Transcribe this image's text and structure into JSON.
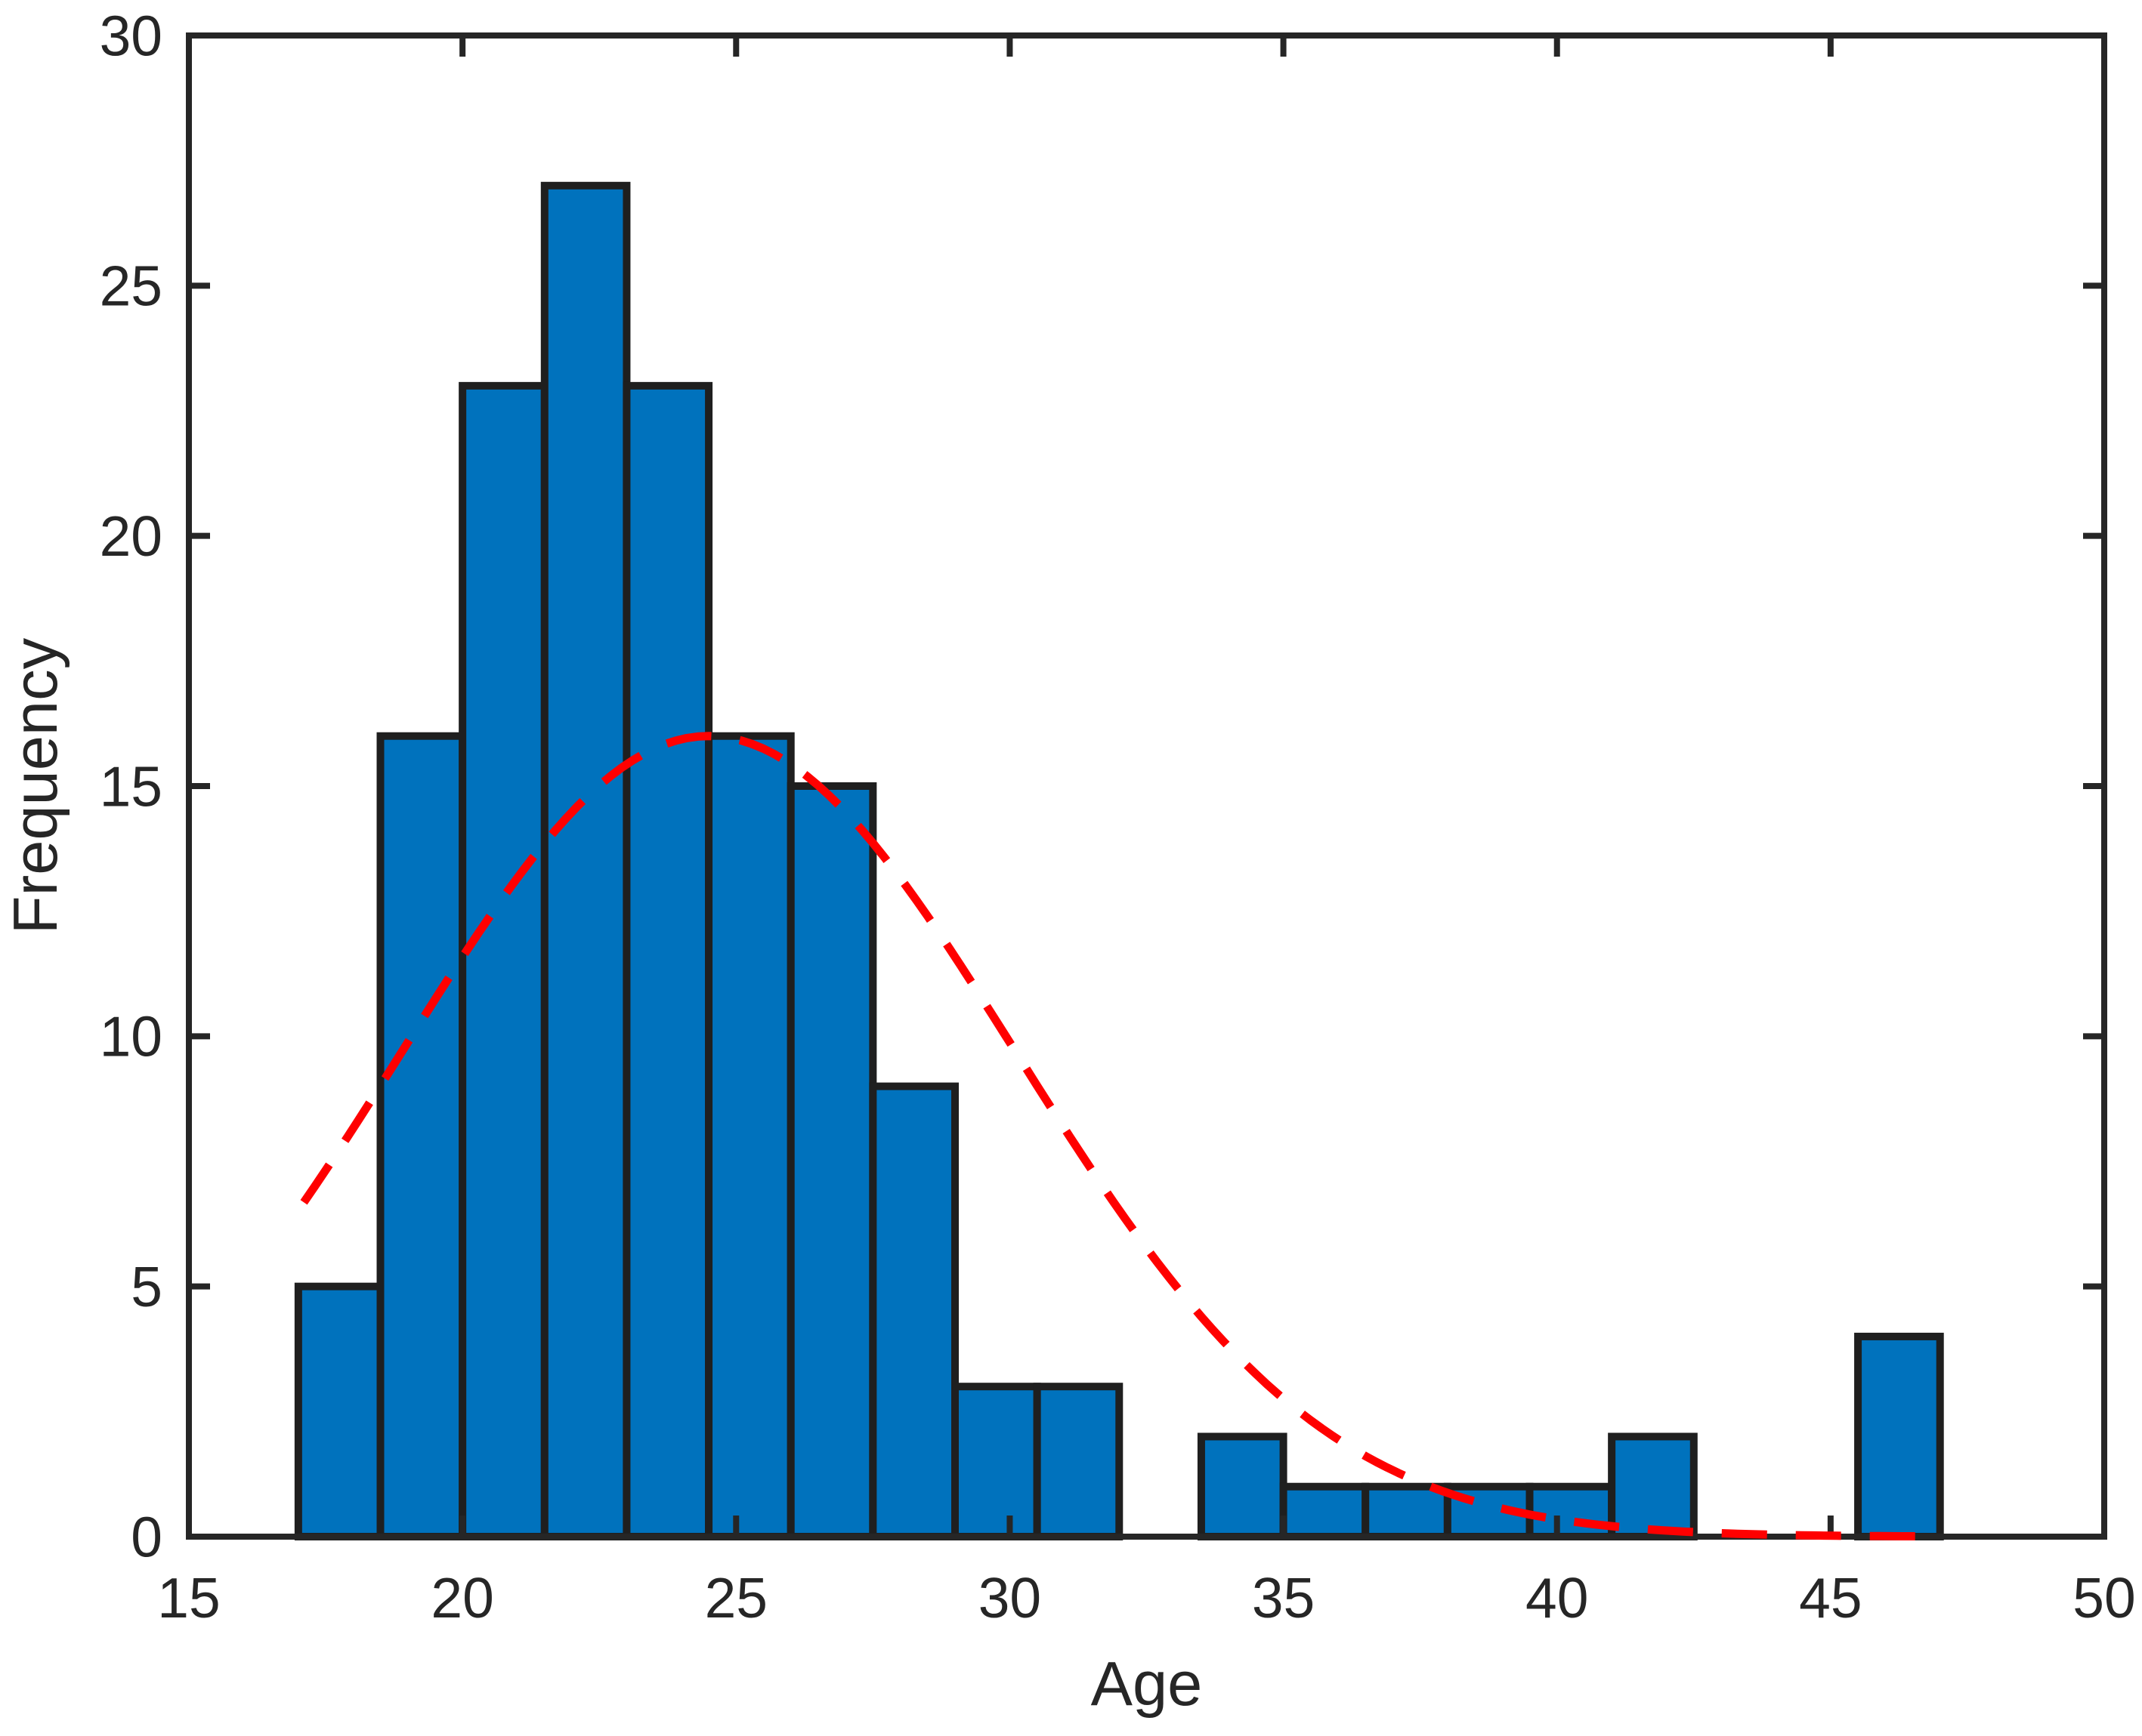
{
  "figure": {
    "background": "#ffffff",
    "axes_color": "#262626",
    "text_color": "#262626"
  },
  "chart_data": {
    "type": "bar",
    "subtype": "histogram",
    "title": "",
    "xlabel": "Age",
    "ylabel": "Frequency",
    "xlim": [
      15,
      50
    ],
    "ylim": [
      0,
      30
    ],
    "x_ticks": [
      15,
      20,
      25,
      30,
      35,
      40,
      45,
      50
    ],
    "y_ticks": [
      0,
      5,
      10,
      15,
      20,
      25,
      30
    ],
    "grid": false,
    "box": true,
    "tick_direction": "in",
    "legend_position": "none",
    "bin_edges": [
      17,
      18.5,
      20,
      21.5,
      23,
      24.5,
      26,
      27.5,
      29,
      30.5,
      32,
      33.5,
      35,
      36.5,
      38,
      39.5,
      41,
      42.5,
      44,
      45.5,
      47
    ],
    "counts": [
      5,
      16,
      23,
      27,
      23,
      16,
      15,
      9,
      3,
      3,
      0,
      2,
      1,
      1,
      1,
      1,
      2,
      0,
      0,
      4
    ],
    "bar_fill": "#0072BD",
    "bar_edge": "#1f1f1f",
    "fit_curve": {
      "kind": "normal",
      "color": "#ff0000",
      "style": "dashed",
      "mu": 24.5,
      "sigma": 5.6,
      "peak": 16,
      "x_start": 17.1,
      "x_end": 47.0
    }
  }
}
